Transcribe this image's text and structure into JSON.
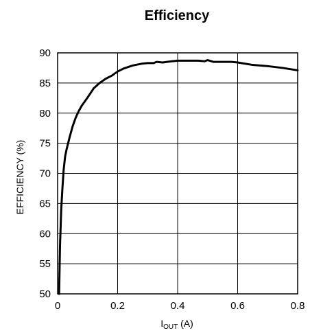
{
  "chart_data": {
    "type": "line",
    "title": "Efficiency",
    "xlabel": {
      "main": "I",
      "sub": "OUT",
      "suffix": " (A)"
    },
    "ylabel": "EFFICIENCY (%)",
    "xlim": [
      0,
      0.8
    ],
    "ylim": [
      50,
      90
    ],
    "x_ticks": [
      0,
      0.2,
      0.4,
      0.6,
      0.8
    ],
    "x_tick_labels": [
      "0",
      "0.2",
      "0.4",
      "0.6",
      "0.8"
    ],
    "y_ticks": [
      50,
      55,
      60,
      65,
      70,
      75,
      80,
      85,
      90
    ],
    "y_tick_labels": [
      "50",
      "55",
      "60",
      "65",
      "70",
      "75",
      "80",
      "85",
      "90"
    ],
    "grid": true,
    "series": [
      {
        "x": [
          0.005,
          0.008,
          0.012,
          0.016,
          0.02,
          0.025,
          0.03,
          0.04,
          0.05,
          0.06,
          0.07,
          0.08,
          0.1,
          0.12,
          0.14,
          0.16,
          0.18,
          0.2,
          0.22,
          0.25,
          0.28,
          0.3,
          0.32,
          0.33,
          0.35,
          0.38,
          0.4,
          0.42,
          0.45,
          0.47,
          0.49,
          0.5,
          0.52,
          0.55,
          0.58,
          0.6,
          0.65,
          0.7,
          0.75,
          0.8
        ],
        "y": [
          50,
          58,
          64,
          67.5,
          70.5,
          72.8,
          74,
          76,
          77.8,
          79.2,
          80.3,
          81.2,
          82.6,
          84.1,
          85,
          85.7,
          86.2,
          86.9,
          87.4,
          87.9,
          88.2,
          88.3,
          88.3,
          88.5,
          88.4,
          88.6,
          88.7,
          88.7,
          88.7,
          88.7,
          88.6,
          88.8,
          88.5,
          88.5,
          88.5,
          88.4,
          88.0,
          87.8,
          87.5,
          87.1
        ]
      }
    ],
    "colors": {
      "line": "#000000",
      "grid": "#000000",
      "background": "#ffffff"
    }
  }
}
